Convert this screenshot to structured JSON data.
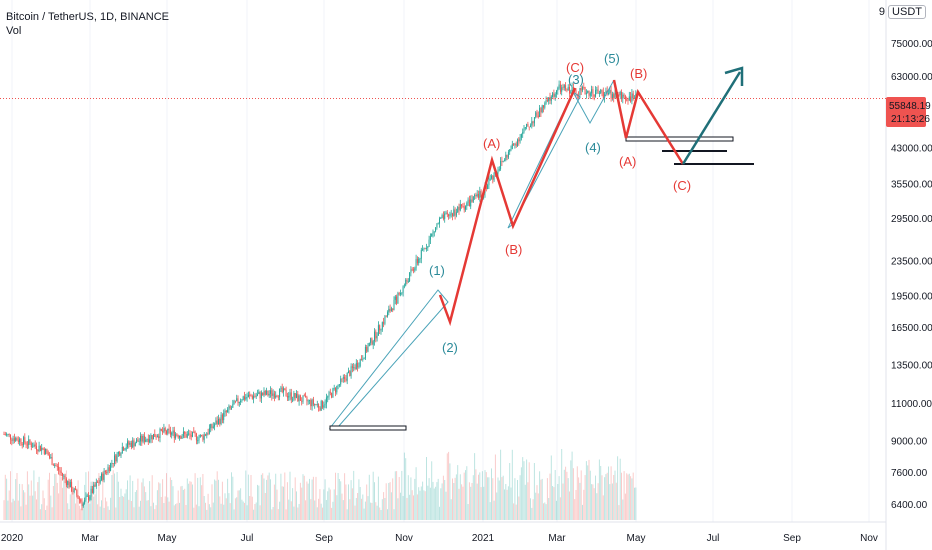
{
  "header": {
    "symbol_line": "Bitcoin / TetherUS, 1D, BINANCE",
    "indicator": "Vol",
    "top_tick": "9",
    "currency": "USDT"
  },
  "price_tag": {
    "price": "55848.19",
    "countdown": "21:13:26",
    "color": "#ef5350"
  },
  "colors": {
    "up": "#26a69a",
    "down": "#ef5350",
    "wave_red": "#e53935",
    "wave_teal": "#2b8a99",
    "arrow": "#1f6f78",
    "channel": "#4aa3b8"
  },
  "chart_data": {
    "type": "candlestick",
    "scale": "log",
    "y_tick_labels": [
      "75000.00",
      "63000.00",
      "43000.00",
      "35500.00",
      "29500.00",
      "23500.00",
      "19500.00",
      "16500.00",
      "13500.00",
      "11000.00",
      "9000.00",
      "7600.00",
      "6400.00"
    ],
    "x_tick_labels": [
      "2020",
      "Mar",
      "May",
      "Jul",
      "Sep",
      "Nov",
      "2021",
      "Mar",
      "May",
      "Jul",
      "Sep",
      "Nov"
    ],
    "last_price": 55848.19,
    "approx_closes_by_month": [
      {
        "month": "2020-01",
        "close": 9300
      },
      {
        "month": "2020-02",
        "close": 8600
      },
      {
        "month": "2020-03",
        "close": 6400
      },
      {
        "month": "2020-04",
        "close": 8700
      },
      {
        "month": "2020-05",
        "close": 9400
      },
      {
        "month": "2020-06",
        "close": 9150
      },
      {
        "month": "2020-07",
        "close": 11300
      },
      {
        "month": "2020-08",
        "close": 11650
      },
      {
        "month": "2020-09",
        "close": 10800
      },
      {
        "month": "2020-10",
        "close": 13800
      },
      {
        "month": "2020-11",
        "close": 19700
      },
      {
        "month": "2020-12",
        "close": 29000
      },
      {
        "month": "2021-01",
        "close": 33100
      },
      {
        "month": "2021-02",
        "close": 45200
      },
      {
        "month": "2021-03",
        "close": 58800
      },
      {
        "month": "2021-04",
        "close": 57700
      },
      {
        "month": "2021-05",
        "close": 55848
      }
    ],
    "wave_labels": {
      "w1": "(1)",
      "w2": "(2)",
      "w3": "(3)",
      "w4": "(4)",
      "w5": "(5)",
      "a1": "(A)",
      "b1": "(B)",
      "c1": "(C)",
      "a2": "(A)",
      "b2": "(B)",
      "c2": "(C)"
    }
  }
}
